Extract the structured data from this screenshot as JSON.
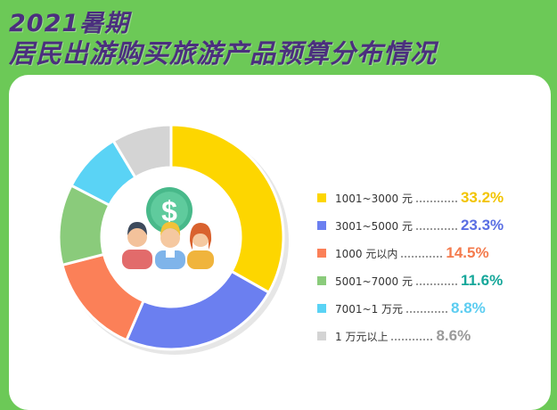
{
  "title": {
    "line1": "2021暑期",
    "line2": "居民出游购买旅游产品预算分布情况"
  },
  "colors": {
    "background": "#6cc957",
    "title": "#4b2f7e"
  },
  "icons": [
    "dollar-coin-icon",
    "people-group-icon"
  ],
  "chart_data": {
    "type": "pie",
    "style": "donut",
    "unit": "%",
    "categories": [
      "1001~3000 元",
      "3001~5000 元",
      "1000 元以内",
      "5001~7000 元",
      "7001~1 万元",
      "1 万元以上"
    ],
    "values": [
      33.2,
      23.3,
      14.5,
      11.6,
      8.8,
      8.6
    ],
    "value_labels": [
      "33.2%",
      "23.3%",
      "14.5%",
      "11.6%",
      "8.8%",
      "8.6%"
    ],
    "colors": [
      "#fdd600",
      "#6b7ff0",
      "#fb8058",
      "#8acb7b",
      "#5ad3f5",
      "#d4d4d4"
    ],
    "value_colors": [
      "#f2c400",
      "#5a6ee3",
      "#f47b4d",
      "#16a79a",
      "#5ccdf1",
      "#9a9a9a"
    ],
    "legend_position": "right"
  }
}
